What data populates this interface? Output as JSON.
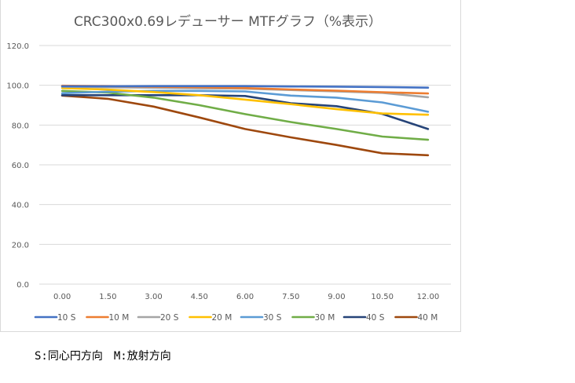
{
  "chart_data": {
    "type": "line",
    "title": "CRC300x0.69レデューサー MTFグラフ（%表示）",
    "xlabel": "",
    "ylabel": "",
    "categories": [
      "0.00",
      "1.50",
      "3.00",
      "4.50",
      "6.00",
      "7.50",
      "9.00",
      "10.50",
      "12.00"
    ],
    "ylim": [
      0,
      120
    ],
    "yticks": [
      "0.0",
      "20.0",
      "40.0",
      "60.0",
      "80.0",
      "100.0",
      "120.0"
    ],
    "ytick_values": [
      0,
      20,
      40,
      60,
      80,
      100,
      120
    ],
    "grid": true,
    "legend_position": "bottom",
    "series": [
      {
        "name": "10 S",
        "color": "#4472c4",
        "values": [
          99.5,
          99.5,
          99.6,
          99.6,
          99.6,
          99.4,
          99.3,
          99.1,
          98.8
        ]
      },
      {
        "name": "10 M",
        "color": "#ed7d31",
        "values": [
          99.8,
          99.6,
          99.3,
          99.0,
          98.6,
          97.9,
          97.3,
          96.5,
          95.9
        ]
      },
      {
        "name": "20 S",
        "color": "#a5a5a5",
        "values": [
          99.3,
          99.0,
          98.8,
          98.5,
          98.3,
          97.6,
          96.9,
          96.2,
          94.0
        ]
      },
      {
        "name": "20 M",
        "color": "#ffc000",
        "values": [
          98.6,
          97.8,
          96.6,
          95.0,
          92.8,
          90.5,
          88.0,
          85.8,
          85.2
        ]
      },
      {
        "name": "30 S",
        "color": "#5b9bd5",
        "values": [
          96.0,
          96.8,
          97.2,
          97.2,
          96.9,
          94.8,
          93.8,
          91.4,
          86.7
        ]
      },
      {
        "name": "30 M",
        "color": "#70ad47",
        "values": [
          97.2,
          96.3,
          93.8,
          90.0,
          85.5,
          81.5,
          78.0,
          74.2,
          72.6
        ]
      },
      {
        "name": "40 S",
        "color": "#264478",
        "values": [
          95.0,
          95.0,
          95.0,
          95.0,
          94.6,
          91.0,
          89.5,
          85.6,
          78.0
        ]
      },
      {
        "name": "40 M",
        "color": "#9e480e",
        "values": [
          94.8,
          93.2,
          89.3,
          83.8,
          78.0,
          73.8,
          70.0,
          65.8,
          64.8
        ]
      }
    ]
  },
  "note": "S:同心円方向　M:放射方向"
}
